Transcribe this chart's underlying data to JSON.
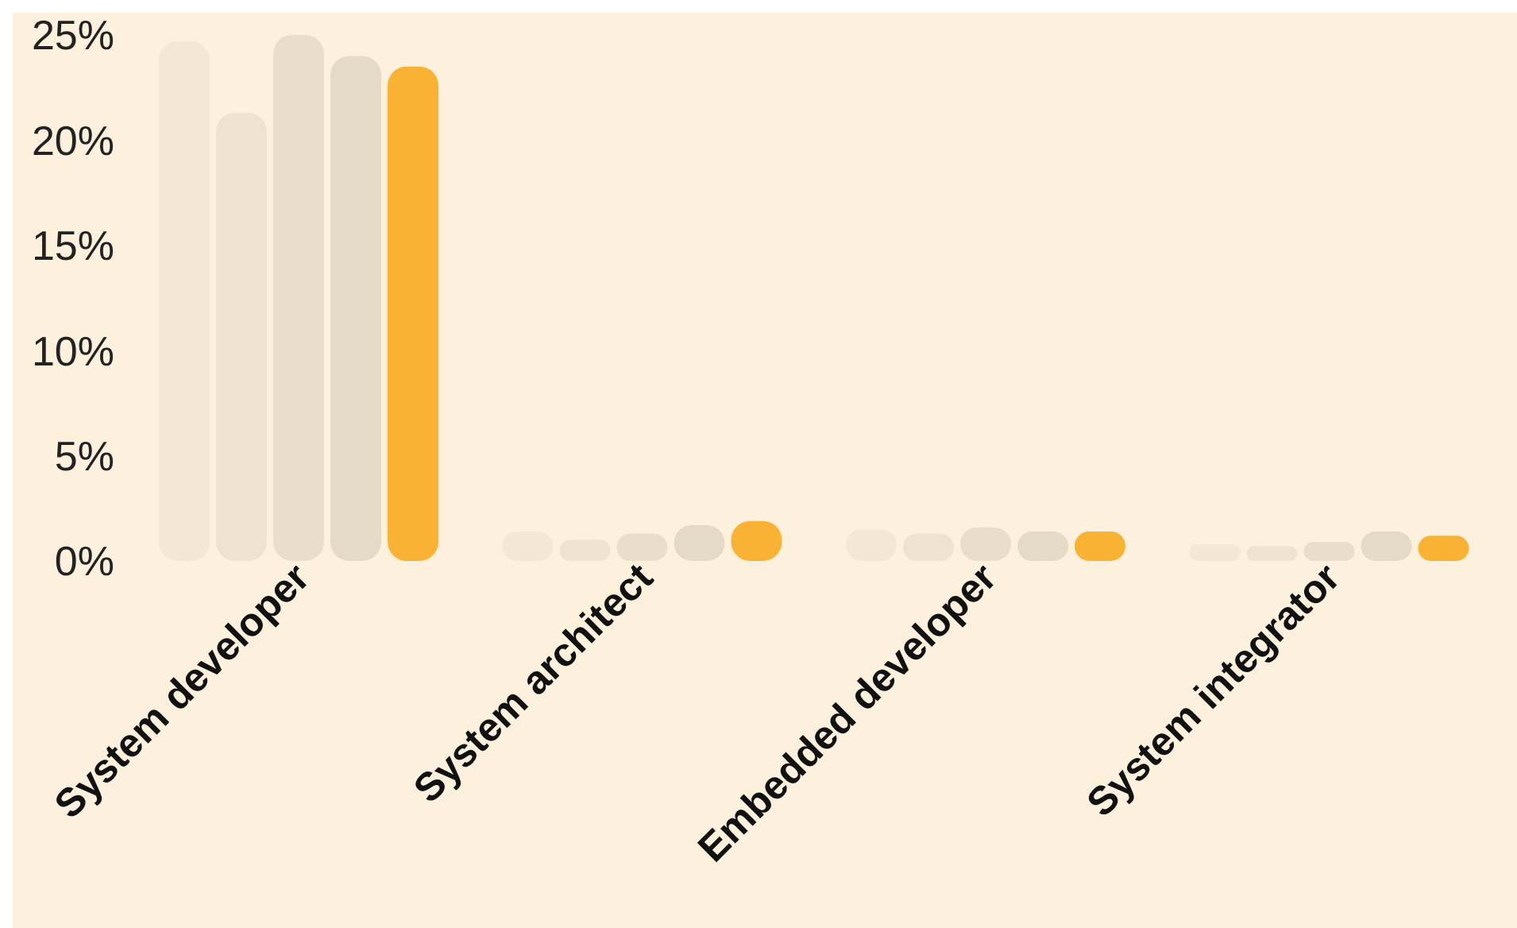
{
  "chart_data": {
    "type": "bar",
    "categories": [
      "System developer",
      "System architect",
      "Embedded developer",
      "System integrator"
    ],
    "series": [
      {
        "color": "#f4e8d5",
        "values": [
          24.7,
          1.4,
          1.5,
          0.8
        ]
      },
      {
        "color": "#efe3cf",
        "values": [
          21.3,
          1.0,
          1.3,
          0.7
        ]
      },
      {
        "color": "#eaddca",
        "values": [
          25.0,
          1.3,
          1.6,
          0.9
        ]
      },
      {
        "color": "#e5dac7",
        "values": [
          24.0,
          1.7,
          1.4,
          1.4
        ]
      },
      {
        "color": "#f9b233",
        "values": [
          23.5,
          1.9,
          1.4,
          1.2
        ]
      }
    ],
    "ylim": [
      0,
      25
    ],
    "yticks": [
      {
        "value": 0,
        "label": "0%"
      },
      {
        "value": 5,
        "label": "5%"
      },
      {
        "value": 10,
        "label": "10%"
      },
      {
        "value": 15,
        "label": "15%"
      },
      {
        "value": 20,
        "label": "20%"
      },
      {
        "value": 25,
        "label": "25%"
      }
    ],
    "grid": false,
    "legend": false
  }
}
